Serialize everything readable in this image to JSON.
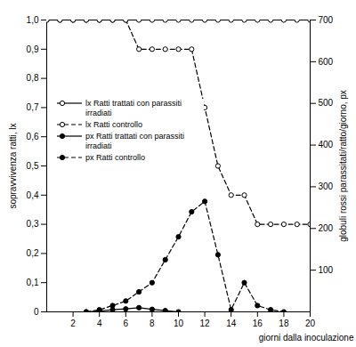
{
  "chart_data": {
    "type": "line",
    "xlabel": "giorni dalla inoculazione",
    "ylabel": "sopravvivenza ratti, lx",
    "y2label": "globuli rossi parassitati/ratto/giorno, px",
    "x": [
      0,
      1,
      2,
      3,
      4,
      5,
      6,
      7,
      8,
      9,
      10,
      11,
      12,
      13,
      14,
      15,
      16,
      17,
      18,
      19,
      20
    ],
    "xlim": [
      0,
      20
    ],
    "xticks": [
      2,
      4,
      6,
      8,
      10,
      12,
      14,
      16,
      18,
      20
    ],
    "ylim": [
      0,
      1
    ],
    "yticks": [
      0,
      {
        "value": 0.1,
        "label": "0,1"
      },
      {
        "value": 0.2,
        "label": "0,2"
      },
      {
        "value": 0.3,
        "label": "0,3"
      },
      {
        "value": 0.4,
        "label": "0,4"
      },
      {
        "value": 0.5,
        "label": "0,5"
      },
      {
        "value": 0.6,
        "label": "0,6"
      },
      {
        "value": 0.7,
        "label": "0,7"
      },
      {
        "value": 0.8,
        "label": "0,8"
      },
      {
        "value": 0.9,
        "label": "0,9"
      },
      {
        "value": 1.0,
        "label": "1,0"
      }
    ],
    "y2lim": [
      0,
      700
    ],
    "y2ticks": [
      100,
      200,
      300,
      400,
      500,
      600,
      700
    ],
    "grid": false,
    "legend": "left",
    "series": [
      {
        "name": "lx Ratti trattati con parassiti irradiati",
        "color": "#000000",
        "marker": "open_circle",
        "line_style": "solid",
        "values": [
          1,
          1,
          1,
          1,
          1,
          1,
          1,
          1,
          1,
          1,
          1,
          1,
          1,
          1,
          1,
          1,
          1,
          1,
          1,
          1,
          1
        ]
      },
      {
        "name": "lx Ratti controllo",
        "color": "#000000",
        "marker": "open_circle",
        "line_style": "dashed",
        "values": [
          1,
          1,
          1,
          1,
          1,
          1,
          1,
          0.9,
          0.9,
          0.9,
          0.9,
          0.9,
          0.7,
          0.5,
          0.4,
          0.4,
          0.3,
          0.3,
          0.3,
          0.3,
          0.3
        ]
      },
      {
        "name": "px Ratti trattati con parassiti irradiati",
        "color": "#000000",
        "marker": "circle",
        "line_style": "solid",
        "axis": "y2",
        "values": [
          null,
          null,
          null,
          0,
          2,
          5,
          7,
          10,
          6,
          3,
          0,
          null,
          null,
          null,
          null,
          null,
          null,
          null,
          null,
          null,
          null
        ]
      },
      {
        "name": "px Ratti controllo",
        "color": "#000000",
        "marker": "circle",
        "line_style": "dashed",
        "axis": "y2",
        "values": [
          null,
          null,
          null,
          0,
          5,
          15,
          26,
          48,
          70,
          125,
          180,
          240,
          265,
          137,
          5,
          70,
          15,
          5,
          0,
          null,
          null
        ]
      }
    ]
  }
}
